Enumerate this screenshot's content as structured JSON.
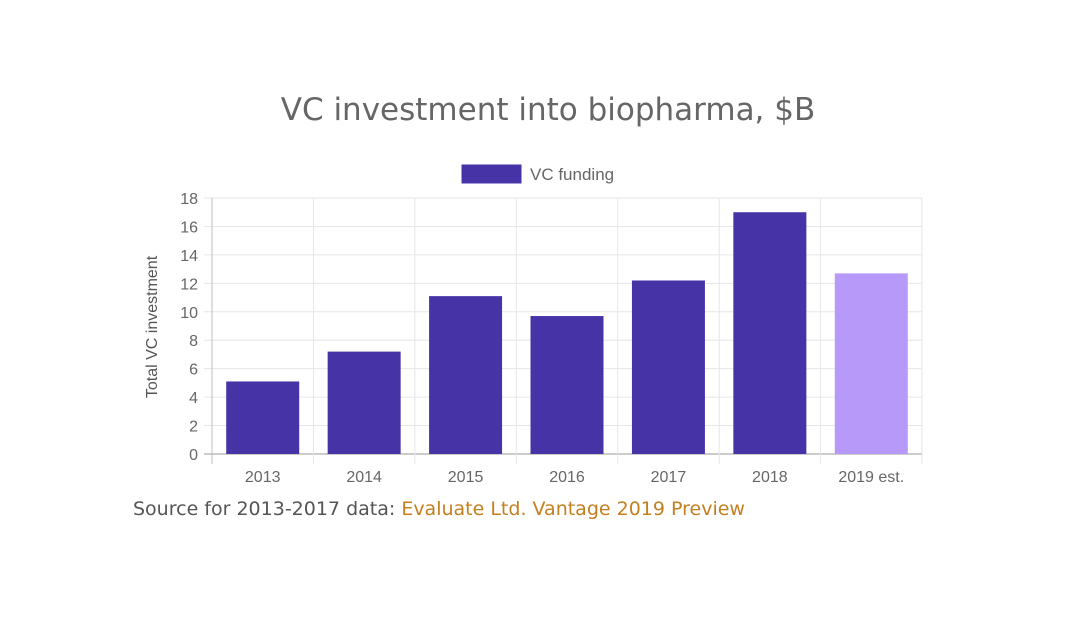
{
  "chart_data": {
    "type": "bar",
    "title": "VC investment into biopharma, $B",
    "legend": {
      "placement": "top-center",
      "entries": [
        "VC funding"
      ]
    },
    "categories": [
      "2013",
      "2014",
      "2015",
      "2016",
      "2017",
      "2018",
      "2019 est."
    ],
    "series": [
      {
        "name": "VC funding",
        "values": [
          5.1,
          7.2,
          11.1,
          9.7,
          12.2,
          17.0,
          12.7
        ]
      }
    ],
    "bar_colors": [
      "#4634a7",
      "#4634a7",
      "#4634a7",
      "#4634a7",
      "#4634a7",
      "#4634a7",
      "#b799fa"
    ],
    "xlabel": "",
    "ylabel": "Total VC investment",
    "ylim": [
      0,
      18
    ],
    "yticks": [
      0,
      2,
      4,
      6,
      8,
      10,
      12,
      14,
      16,
      18
    ],
    "grid": true
  },
  "source": {
    "prefix": "Source for 2013-2017 data: ",
    "link_text": "Evaluate Ltd. Vantage 2019 Preview"
  }
}
